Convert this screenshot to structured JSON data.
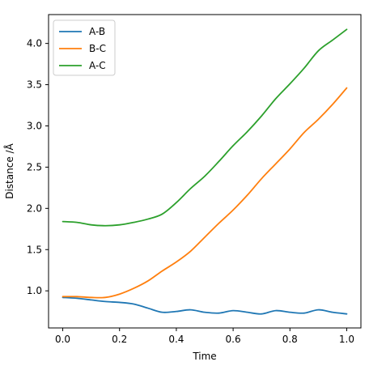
{
  "chart_data": {
    "type": "line",
    "title": "",
    "xlabel": "Time",
    "ylabel": "Distance /Å",
    "xlim": [
      -0.05,
      1.05
    ],
    "ylim": [
      0.55,
      4.35
    ],
    "x_ticks": [
      "0.0",
      "0.2",
      "0.4",
      "0.6",
      "0.8",
      "1.0"
    ],
    "y_ticks": [
      "1.0",
      "1.5",
      "2.0",
      "2.5",
      "3.0",
      "3.5",
      "4.0"
    ],
    "grid": false,
    "legend_position": "upper left",
    "series": [
      {
        "name": "A-B",
        "color": "#1f77b4",
        "x": [
          0.0,
          0.05,
          0.1,
          0.15,
          0.2,
          0.25,
          0.3,
          0.35,
          0.4,
          0.45,
          0.5,
          0.55,
          0.6,
          0.65,
          0.7,
          0.75,
          0.8,
          0.85,
          0.9,
          0.95,
          1.0
        ],
        "values": [
          0.92,
          0.91,
          0.89,
          0.87,
          0.86,
          0.84,
          0.79,
          0.74,
          0.75,
          0.77,
          0.74,
          0.73,
          0.76,
          0.74,
          0.72,
          0.76,
          0.74,
          0.73,
          0.77,
          0.74,
          0.72
        ]
      },
      {
        "name": "B-C",
        "color": "#ff7f0e",
        "x": [
          0.0,
          0.05,
          0.1,
          0.15,
          0.2,
          0.25,
          0.3,
          0.35,
          0.4,
          0.45,
          0.5,
          0.55,
          0.6,
          0.65,
          0.7,
          0.75,
          0.8,
          0.85,
          0.9,
          0.95,
          1.0
        ],
        "values": [
          0.93,
          0.93,
          0.92,
          0.92,
          0.96,
          1.03,
          1.12,
          1.24,
          1.35,
          1.48,
          1.65,
          1.82,
          1.98,
          2.16,
          2.36,
          2.54,
          2.72,
          2.92,
          3.08,
          3.26,
          3.46
        ]
      },
      {
        "name": "A-C",
        "color": "#2ca02c",
        "x": [
          0.0,
          0.05,
          0.1,
          0.15,
          0.2,
          0.25,
          0.3,
          0.35,
          0.4,
          0.45,
          0.5,
          0.55,
          0.6,
          0.65,
          0.7,
          0.75,
          0.8,
          0.85,
          0.9,
          0.95,
          1.0
        ],
        "values": [
          1.84,
          1.83,
          1.8,
          1.79,
          1.8,
          1.83,
          1.87,
          1.93,
          2.07,
          2.24,
          2.39,
          2.57,
          2.76,
          2.93,
          3.12,
          3.33,
          3.51,
          3.7,
          3.91,
          4.04,
          4.17
        ]
      }
    ]
  }
}
